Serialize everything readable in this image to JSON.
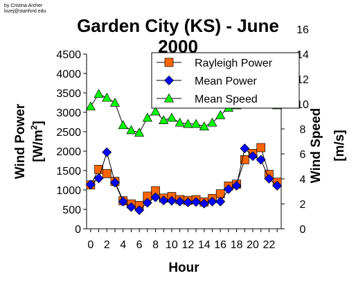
{
  "credit": {
    "line1": "by Cristina Archer",
    "line2": "lozej@stanford.edu"
  },
  "chart_data": {
    "type": "line",
    "title_line1": "Garden City (KS) - June",
    "title_line2": "2000",
    "xlabel": "Hour",
    "ylabel_left": "Wind Power",
    "ylabel_left_unit_pre": "[W/m",
    "ylabel_left_unit_sup": "2",
    "ylabel_left_unit_post": "]",
    "ylabel_right": "Wind Speed",
    "ylabel_right_unit": "[m/s]",
    "x": [
      0,
      1,
      2,
      3,
      4,
      5,
      6,
      7,
      8,
      9,
      10,
      11,
      12,
      13,
      14,
      15,
      16,
      17,
      18,
      19,
      20,
      21,
      22,
      23
    ],
    "x_tick_labels": [
      "0",
      "2",
      "4",
      "6",
      "8",
      "10",
      "12",
      "14",
      "16",
      "18",
      "20",
      "22"
    ],
    "x_tick_values": [
      0,
      2,
      4,
      6,
      8,
      10,
      12,
      14,
      16,
      18,
      20,
      22
    ],
    "xlim": [
      -0.5,
      23.5
    ],
    "ylim_left": [
      0,
      4500
    ],
    "y_ticks_left": [
      "0",
      "500",
      "1000",
      "1500",
      "2000",
      "2500",
      "3000",
      "3500",
      "4000",
      "4500"
    ],
    "ylim_right": [
      0,
      14
    ],
    "y_ticks_right": [
      "0",
      "2",
      "4",
      "6",
      "8",
      "10",
      "12",
      "14",
      "16"
    ],
    "grid": false,
    "legend_position": "top-right",
    "series": [
      {
        "name": "Rayleigh Power",
        "axis": "left",
        "marker": "square",
        "color": "#ff6600",
        "values": [
          1130,
          1530,
          1420,
          1220,
          720,
          640,
          600,
          840,
          980,
          790,
          830,
          750,
          730,
          750,
          690,
          780,
          900,
          1100,
          1150,
          1780,
          1940,
          2090,
          1400,
          1200
        ]
      },
      {
        "name": "Mean Power",
        "axis": "left",
        "marker": "diamond",
        "color": "#0000ff",
        "values": [
          1140,
          1300,
          1970,
          1190,
          700,
          560,
          480,
          670,
          810,
          730,
          720,
          700,
          680,
          690,
          650,
          700,
          700,
          1020,
          1110,
          2070,
          1870,
          1780,
          1290,
          1110
        ]
      },
      {
        "name": "Mean Speed",
        "axis": "right",
        "marker": "triangle",
        "color": "#00ff00",
        "values": [
          9.8,
          10.8,
          10.5,
          10.1,
          8.3,
          7.9,
          7.7,
          8.9,
          9.4,
          8.7,
          8.9,
          8.5,
          8.4,
          8.4,
          8.2,
          8.5,
          9.1,
          9.7,
          9.9,
          11.5,
          12.5,
          11.8,
          10.5,
          9.9
        ]
      }
    ]
  },
  "colors": {
    "background": "#ffffff",
    "axis": "#000000",
    "line": "#000000"
  }
}
